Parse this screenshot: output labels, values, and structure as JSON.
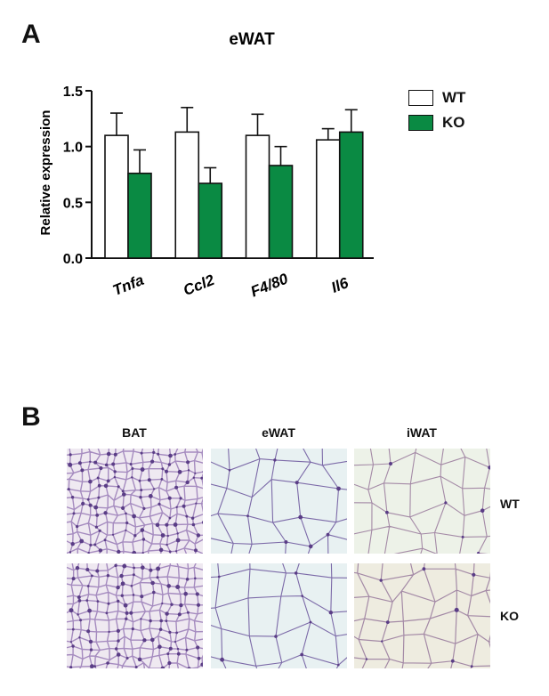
{
  "panel_a_letter": "A",
  "panel_b_letter": "B",
  "chart_data": {
    "type": "bar",
    "title": "eWAT",
    "xlabel": "",
    "ylabel": "Relative expression",
    "ylim": [
      0,
      1.5
    ],
    "yticks": [
      "0.0",
      "0.5",
      "1.0",
      "1.5"
    ],
    "categories": [
      "Tnfa",
      "Ccl2",
      "F4/80",
      "Il6"
    ],
    "series": [
      {
        "name": "WT",
        "color": "#ffffff",
        "values": [
          1.1,
          1.13,
          1.1,
          1.06
        ],
        "errors": [
          0.2,
          0.22,
          0.19,
          0.1
        ]
      },
      {
        "name": "KO",
        "color": "#0a8a43",
        "values": [
          0.76,
          0.67,
          0.83,
          1.13
        ],
        "errors": [
          0.21,
          0.14,
          0.17,
          0.2
        ]
      }
    ],
    "legend_position": "top-right",
    "grid": false,
    "error_bars": "upper"
  },
  "histology": {
    "columns": [
      "BAT",
      "eWAT",
      "iWAT"
    ],
    "rows": [
      "WT",
      "KO"
    ]
  },
  "colors": {
    "bat_bg": "#efe9f1",
    "bat_line": "#a58bbf",
    "ewat_bg": "#e8f1f2",
    "ewat_line": "#7c6aa8",
    "iwat_bg": "#edf2e8",
    "iwat_line": "#a48aa6",
    "iwat_ko_bg": "#eeece0"
  }
}
